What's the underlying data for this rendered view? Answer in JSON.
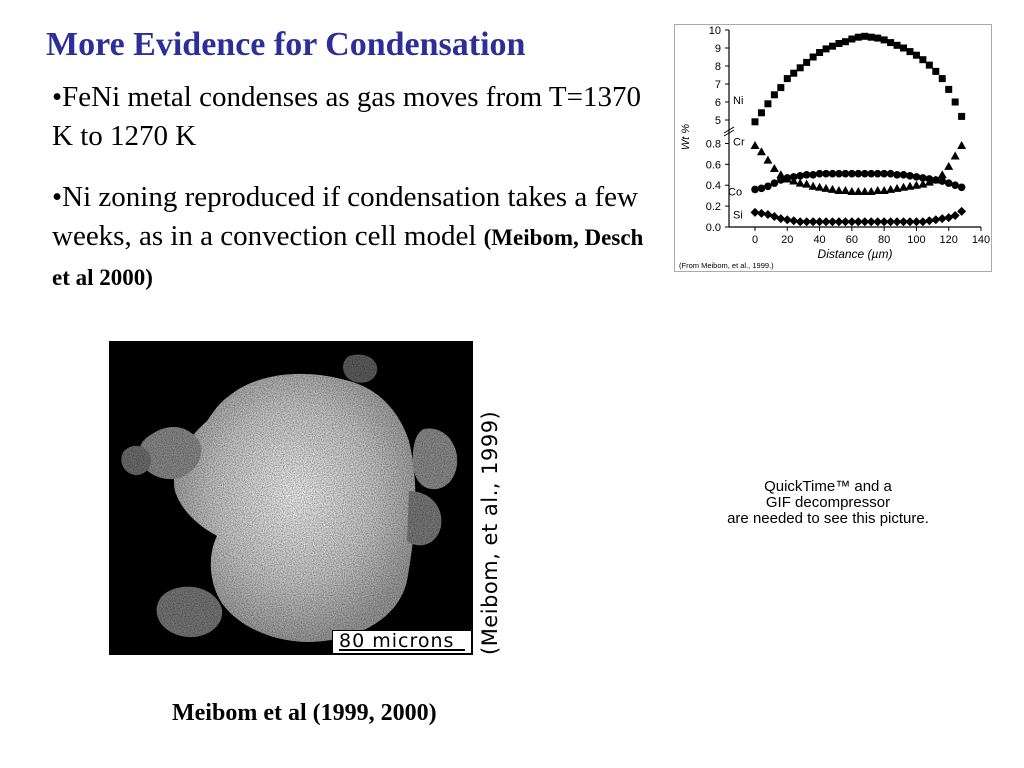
{
  "slide": {
    "title": "More Evidence for Condensation",
    "bullet1": "•FeNi metal condenses as gas moves from T=1370 K to 1270 K",
    "bullet2_text": "•Ni zoning reproduced if condensation takes a few weeks, as in a convection cell model ",
    "bullet2_cite": "(Meibom, Desch et al 2000)",
    "caption": "Meibom et al (1999, 2000)",
    "quicktime_lines": [
      "QuickTime™ and a",
      "GIF decompressor",
      "are needed to see this picture."
    ]
  },
  "micrograph": {
    "scale_label": "80 microns",
    "side_credit": "(Meibom, et al., 1999)"
  },
  "chart_data": {
    "type": "scatter",
    "xlabel": "Distance (µm)",
    "ylabel": "Wt %",
    "source_note": "(From Meibom, et al., 1999.)",
    "xlim": [
      0,
      140
    ],
    "x_ticks": [
      "0",
      "20",
      "40",
      "60",
      "80",
      "100",
      "120",
      "140"
    ],
    "y_ticks_lower": [
      "0.0",
      "0.2",
      "0.4",
      "0.6",
      "0.8"
    ],
    "y_ticks_upper": [
      "5",
      "6",
      "7",
      "8",
      "9",
      "10"
    ],
    "ylim_lower": [
      0,
      0.9
    ],
    "ylim_upper": [
      4.5,
      10
    ],
    "series": [
      {
        "name": "Ni",
        "marker": "square",
        "x": [
          0,
          4,
          8,
          12,
          16,
          20,
          24,
          28,
          32,
          36,
          40,
          44,
          48,
          52,
          56,
          60,
          64,
          68,
          72,
          76,
          80,
          84,
          88,
          92,
          96,
          100,
          104,
          108,
          112,
          116,
          120,
          124,
          128
        ],
        "y": [
          4.9,
          5.4,
          5.9,
          6.4,
          6.8,
          7.3,
          7.6,
          7.9,
          8.2,
          8.5,
          8.75,
          8.95,
          9.1,
          9.25,
          9.35,
          9.5,
          9.6,
          9.65,
          9.6,
          9.55,
          9.45,
          9.3,
          9.15,
          9.0,
          8.8,
          8.6,
          8.35,
          8.05,
          7.7,
          7.3,
          6.7,
          6.0,
          5.2
        ]
      },
      {
        "name": "Cr",
        "marker": "triangle",
        "x": [
          0,
          4,
          8,
          12,
          16,
          20,
          24,
          28,
          32,
          36,
          40,
          44,
          48,
          52,
          56,
          60,
          64,
          68,
          72,
          76,
          80,
          84,
          88,
          92,
          96,
          100,
          104,
          108,
          112,
          116,
          120,
          124,
          128
        ],
        "y": [
          0.78,
          0.72,
          0.64,
          0.56,
          0.5,
          0.46,
          0.44,
          0.42,
          0.41,
          0.39,
          0.38,
          0.37,
          0.36,
          0.35,
          0.35,
          0.34,
          0.34,
          0.34,
          0.34,
          0.35,
          0.35,
          0.36,
          0.37,
          0.38,
          0.39,
          0.4,
          0.41,
          0.43,
          0.45,
          0.5,
          0.58,
          0.68,
          0.78
        ]
      },
      {
        "name": "Co",
        "marker": "circle",
        "x": [
          0,
          4,
          8,
          12,
          16,
          20,
          24,
          28,
          32,
          36,
          40,
          44,
          48,
          52,
          56,
          60,
          64,
          68,
          72,
          76,
          80,
          84,
          88,
          92,
          96,
          100,
          104,
          108,
          112,
          116,
          120,
          124,
          128
        ],
        "y": [
          0.36,
          0.37,
          0.39,
          0.42,
          0.45,
          0.47,
          0.48,
          0.49,
          0.5,
          0.5,
          0.51,
          0.51,
          0.51,
          0.51,
          0.51,
          0.51,
          0.51,
          0.51,
          0.51,
          0.51,
          0.51,
          0.51,
          0.5,
          0.5,
          0.49,
          0.48,
          0.47,
          0.46,
          0.45,
          0.44,
          0.42,
          0.4,
          0.38
        ]
      },
      {
        "name": "Si",
        "marker": "diamond",
        "x": [
          0,
          4,
          8,
          12,
          16,
          20,
          24,
          28,
          32,
          36,
          40,
          44,
          48,
          52,
          56,
          60,
          64,
          68,
          72,
          76,
          80,
          84,
          88,
          92,
          96,
          100,
          104,
          108,
          112,
          116,
          120,
          124,
          128
        ],
        "y": [
          0.14,
          0.13,
          0.12,
          0.1,
          0.08,
          0.07,
          0.06,
          0.05,
          0.05,
          0.05,
          0.05,
          0.05,
          0.05,
          0.05,
          0.05,
          0.05,
          0.05,
          0.05,
          0.05,
          0.05,
          0.05,
          0.05,
          0.05,
          0.05,
          0.05,
          0.05,
          0.05,
          0.06,
          0.07,
          0.08,
          0.09,
          0.11,
          0.15
        ]
      }
    ]
  }
}
